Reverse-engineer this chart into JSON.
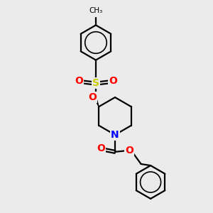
{
  "background_color": "#ebebeb",
  "bond_color": "#000000",
  "S_color": "#cccc00",
  "O_color": "#ff0000",
  "N_color": "#0000ff",
  "figsize": [
    3.0,
    3.0
  ],
  "dpi": 100,
  "xlim": [
    0,
    10
  ],
  "ylim": [
    0,
    10
  ]
}
